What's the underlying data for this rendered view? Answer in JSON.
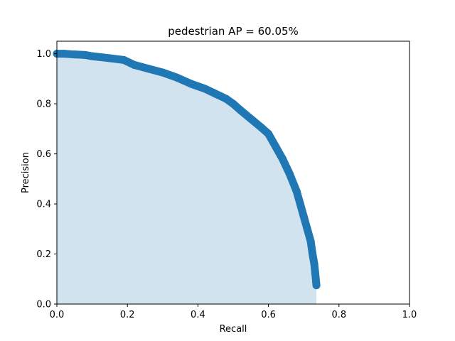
{
  "chart_data": {
    "type": "area",
    "title": "pedestrian AP = 60.05%",
    "xlabel": "Recall",
    "ylabel": "Precision",
    "xlim": [
      0,
      1
    ],
    "ylim": [
      0,
      1.05
    ],
    "xticks": [
      "0.0",
      "0.2",
      "0.4",
      "0.6",
      "0.8",
      "1.0"
    ],
    "yticks": [
      "0.0",
      "0.2",
      "0.4",
      "0.6",
      "0.8",
      "1.0"
    ],
    "grid": false,
    "series": [
      {
        "color": "#1f77b4",
        "fill_color": "#d2e3f0",
        "x": [
          0.0,
          0.02,
          0.05,
          0.08,
          0.1,
          0.15,
          0.19,
          0.22,
          0.26,
          0.3,
          0.34,
          0.38,
          0.42,
          0.45,
          0.48,
          0.5,
          0.52,
          0.55,
          0.58,
          0.6,
          0.62,
          0.64,
          0.66,
          0.68,
          0.69,
          0.7,
          0.71,
          0.72,
          0.725,
          0.73,
          0.733,
          0.735,
          0.736
        ],
        "y": [
          1.0,
          1.0,
          0.997,
          0.995,
          0.99,
          0.982,
          0.975,
          0.955,
          0.94,
          0.925,
          0.905,
          0.88,
          0.86,
          0.84,
          0.82,
          0.8,
          0.775,
          0.74,
          0.705,
          0.68,
          0.63,
          0.58,
          0.52,
          0.45,
          0.4,
          0.35,
          0.3,
          0.25,
          0.2,
          0.16,
          0.12,
          0.09,
          0.075
        ]
      }
    ]
  }
}
